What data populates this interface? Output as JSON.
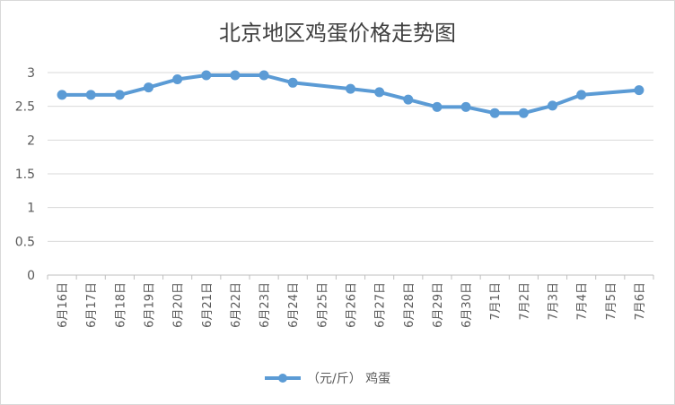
{
  "chart_data": {
    "type": "line",
    "title": "北京地区鸡蛋价格走势图",
    "xlabel": "",
    "ylabel": "",
    "categories": [
      "6月16日",
      "6月17日",
      "6月18日",
      "6月19日",
      "6月20日",
      "6月21日",
      "6月22日",
      "6月23日",
      "6月24日",
      "6月25日",
      "6月26日",
      "6月27日",
      "6月28日",
      "6月29日",
      "6月30日",
      "7月1日",
      "7月2日",
      "7月3日",
      "7月4日",
      "7月5日",
      "7月6日"
    ],
    "series": [
      {
        "name": "（元/斤） 鸡蛋",
        "values": [
          2.67,
          2.67,
          2.67,
          2.78,
          2.9,
          2.96,
          2.96,
          2.96,
          2.85,
          null,
          2.76,
          2.71,
          2.6,
          2.49,
          2.49,
          2.4,
          2.4,
          2.51,
          2.67,
          null,
          2.74
        ],
        "color": "#5b9bd5"
      }
    ],
    "ylim": [
      0,
      3
    ],
    "yticks": [
      "0",
      "0.5",
      "1",
      "1.5",
      "2",
      "2.5",
      "3"
    ],
    "grid": true,
    "gridColor": "#d9d9d9",
    "legend": "bottom"
  }
}
